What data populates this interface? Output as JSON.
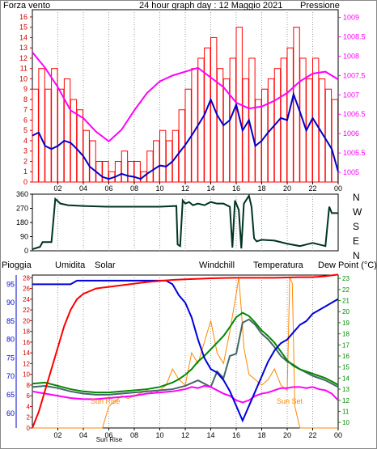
{
  "header": {
    "left_label": "Forza vento",
    "title": "24 hour graph day : 12 Maggio 2021",
    "right_label": "Pressione"
  },
  "colors": {
    "wind": "#ff0000",
    "gust": "#0000cc",
    "pressure": "#ff00ff",
    "direction": "#003322",
    "rain": "#ff0000",
    "humidity": "#0000dd",
    "solar": "#ff8800",
    "windchill": "#446666",
    "temperature": "#008800",
    "dewpoint": "#ff00ff",
    "axis_green": "#008800",
    "axis_blue": "#0000cc",
    "axis_red": "#cc0000"
  },
  "x_tick_labels": [
    "02",
    "04",
    "06",
    "08",
    "10",
    "12",
    "14",
    "16",
    "18",
    "20",
    "22",
    "00"
  ],
  "direction_letters": [
    "N",
    "W",
    "S",
    "E",
    "N"
  ],
  "bottom_header": {
    "rain": "Pioggia",
    "humidity": "Umidita",
    "solar": "Solar",
    "windchill": "Windchill",
    "temperature": "Temperatura",
    "dewpoint": "Dew Point (°C)"
  },
  "annotations": {
    "sunrise_axis": "Sun Rise",
    "sunrise": "Sun Rise",
    "sunset": "Sun Set"
  },
  "chart_data": [
    {
      "type": "line",
      "panel": "wind-pressure",
      "x_unit": "hour",
      "x_range": [
        0,
        24
      ],
      "y_left": {
        "label": "Forza vento",
        "ticks": [
          0,
          1,
          2,
          3,
          4,
          5,
          6,
          7,
          8,
          9,
          10,
          11,
          12,
          13,
          14,
          15,
          16
        ],
        "range": [
          0,
          16.7
        ]
      },
      "y_right": {
        "label": "Pressione",
        "ticks": [
          "1005",
          "1005.5",
          "1006",
          "1006.5",
          "1007",
          "1007.5",
          "1008",
          "1008.5",
          "1009"
        ],
        "range": [
          1004.75,
          1009.2
        ]
      },
      "series": [
        {
          "name": "Forza vento",
          "axis": "left",
          "style": "bars",
          "x": [
            0,
            0.5,
            1,
            1.5,
            2,
            2.5,
            3,
            3.5,
            4,
            4.5,
            5,
            5.5,
            6,
            6.5,
            7,
            7.5,
            8,
            8.5,
            9,
            9.5,
            10,
            10.5,
            11,
            11.5,
            12,
            12.5,
            13,
            13.5,
            14,
            14.5,
            15,
            15.5,
            16,
            16.5,
            17,
            17.5,
            18,
            18.5,
            19,
            19.5,
            20,
            20.5,
            21,
            21.5,
            22,
            22.5,
            23,
            23.5,
            24
          ],
          "values": [
            9,
            11,
            9,
            11,
            9,
            10,
            8,
            7,
            5,
            4,
            2,
            2,
            1,
            2,
            3,
            2,
            2,
            1,
            3,
            4,
            5,
            4,
            5,
            7,
            9,
            11,
            12,
            13,
            14,
            11,
            10,
            12,
            15,
            10,
            12,
            8,
            9,
            10,
            11,
            12,
            13,
            15,
            12,
            10,
            12,
            10,
            9,
            8,
            5
          ]
        },
        {
          "name": "Raffica",
          "axis": "left",
          "x": [
            0,
            0.5,
            1,
            1.5,
            2,
            2.5,
            3,
            3.5,
            4,
            4.5,
            5,
            5.5,
            6,
            6.5,
            7,
            7.5,
            8,
            8.5,
            9,
            9.5,
            10,
            10.5,
            11,
            11.5,
            12,
            12.5,
            13,
            13.5,
            14,
            14.5,
            15,
            15.5,
            16,
            16.5,
            17,
            17.5,
            18,
            18.5,
            19,
            19.5,
            20,
            20.5,
            21,
            21.5,
            22,
            22.5,
            23,
            23.5,
            24
          ],
          "values": [
            4.5,
            4.8,
            3.5,
            3.2,
            3.5,
            4,
            3.8,
            3.2,
            2.5,
            1.5,
            1,
            0.5,
            0.3,
            0.5,
            0.8,
            0.6,
            0.5,
            0.3,
            0.8,
            1.2,
            1.6,
            1.5,
            2,
            2.8,
            3.6,
            4.5,
            5.5,
            6.5,
            8,
            6.5,
            5.5,
            6,
            7.5,
            5,
            6,
            3.5,
            4,
            4.8,
            5.5,
            6.2,
            6,
            8.5,
            6.8,
            5,
            6.2,
            5.2,
            4.2,
            3.2,
            1
          ]
        },
        {
          "name": "Pressione",
          "axis": "right",
          "x": [
            0,
            1,
            2,
            3,
            4,
            5,
            6,
            7,
            8,
            9,
            10,
            11,
            12,
            13,
            14,
            15,
            16,
            17,
            18,
            19,
            20,
            21,
            22,
            23,
            24
          ],
          "values": [
            1008.1,
            1007.7,
            1007.2,
            1006.6,
            1006.4,
            1006.05,
            1005.8,
            1006.1,
            1006.6,
            1007.05,
            1007.35,
            1007.5,
            1007.6,
            1007.7,
            1007.45,
            1007.2,
            1006.8,
            1006.65,
            1006.7,
            1006.85,
            1007.05,
            1007.35,
            1007.55,
            1007.6,
            1007.4
          ]
        }
      ]
    },
    {
      "type": "line",
      "panel": "wind-direction",
      "x_unit": "hour",
      "x_range": [
        0,
        24
      ],
      "y": {
        "ticks": [
          0,
          90,
          180,
          270,
          360
        ],
        "range": [
          0,
          360
        ]
      },
      "series": [
        {
          "name": "Direzione vento",
          "x": [
            0,
            0.6,
            0.8,
            1.5,
            1.8,
            2.2,
            2.8,
            4,
            6,
            8,
            10,
            11.3,
            11.4,
            11.6,
            11.8,
            12,
            12.3,
            12.6,
            13,
            13.5,
            14,
            14.5,
            15,
            15.5,
            15.7,
            15.9,
            16,
            16.2,
            16.4,
            16.6,
            17,
            17.2,
            17.4,
            17.6,
            18,
            19,
            20,
            21,
            22,
            23,
            23.3,
            23.5,
            24
          ],
          "values": [
            10,
            25,
            55,
            55,
            330,
            300,
            290,
            285,
            280,
            280,
            280,
            285,
            40,
            30,
            320,
            300,
            310,
            290,
            300,
            290,
            310,
            300,
            300,
            280,
            20,
            320,
            300,
            260,
            15,
            300,
            350,
            280,
            80,
            60,
            70,
            65,
            45,
            30,
            50,
            30,
            280,
            240,
            240
          ]
        }
      ]
    },
    {
      "type": "line",
      "panel": "rain-humidity-solar-temperature",
      "x_unit": "hour",
      "x_range": [
        0,
        24
      ],
      "y_rain": {
        "label": "Pioggia",
        "ticks": [
          0,
          2,
          4,
          6,
          8,
          10,
          12,
          14,
          16,
          18,
          20,
          22,
          24,
          26,
          28
        ],
        "range": [
          0,
          28.5
        ]
      },
      "y_humidity": {
        "label": "Umidita",
        "ticks": [
          60,
          65,
          70,
          75,
          80,
          85,
          90,
          95
        ],
        "range": [
          56,
          97.5
        ]
      },
      "y_temperature": {
        "label": "Dew Point (°C)",
        "ticks": [
          10,
          11,
          12,
          13,
          14,
          15,
          16,
          17,
          18,
          19,
          20,
          21,
          22,
          23
        ],
        "range": [
          9.5,
          23.3
        ]
      },
      "series": [
        {
          "name": "Pioggia",
          "axis": "rain",
          "x": [
            0,
            0.5,
            1,
            1.5,
            2,
            2.5,
            3,
            3.5,
            4,
            5,
            6,
            7,
            8,
            9,
            10,
            11,
            12,
            13,
            14,
            15,
            16,
            17,
            18,
            19,
            20,
            21,
            22,
            23,
            24
          ],
          "values": [
            0,
            3,
            7,
            11,
            15,
            19,
            22,
            24,
            25,
            26,
            26.3,
            26.6,
            26.9,
            27.2,
            27.4,
            27.6,
            27.7,
            27.8,
            27.9,
            27.95,
            28,
            28,
            28,
            28,
            28.05,
            28.1,
            28.1,
            28.3,
            28.6
          ]
        },
        {
          "name": "Umidita",
          "axis": "humidity",
          "x": [
            0,
            3,
            3.5,
            4,
            6,
            8,
            10,
            10.5,
            11,
            11.5,
            12,
            12.5,
            13,
            13.5,
            14,
            14.5,
            15,
            15.5,
            16,
            16.5,
            17,
            17.5,
            18,
            18.5,
            19,
            19.5,
            20,
            20.5,
            21,
            21.5,
            22,
            22.5,
            23,
            23.5,
            24
          ],
          "values": [
            95,
            95,
            96,
            96,
            96,
            96,
            96,
            96,
            95,
            92,
            90,
            86,
            80,
            75,
            72,
            71,
            69,
            66,
            62,
            58,
            62,
            66,
            70,
            74,
            77,
            79,
            80,
            82,
            84,
            85,
            87,
            88,
            89,
            90,
            91
          ]
        },
        {
          "name": "Solar",
          "axis": "rain",
          "style": "spikes",
          "x": [
            0,
            5.5,
            6,
            6.5,
            7,
            7.5,
            8,
            8.5,
            9,
            9.5,
            10,
            10.5,
            11,
            11.5,
            12,
            12.5,
            13,
            13.5,
            14,
            14.5,
            15,
            15.5,
            16,
            16.2,
            16.4,
            16.6,
            17,
            17.5,
            18,
            18.5,
            19,
            19.5,
            20,
            20.2,
            20.4,
            20.6,
            21,
            24
          ],
          "values": [
            0,
            0,
            4,
            5,
            6,
            5.5,
            6,
            6.5,
            7,
            6.5,
            7,
            8,
            11,
            9,
            8,
            14,
            12,
            16,
            20,
            14,
            12,
            18,
            25,
            28,
            22,
            15,
            10,
            9,
            8,
            9,
            11,
            8,
            7,
            28,
            27,
            4,
            0,
            0
          ]
        },
        {
          "name": "Windchill",
          "axis": "temperature",
          "x": [
            0,
            1,
            2,
            3,
            4,
            5,
            6,
            7,
            8,
            9,
            10,
            11,
            12,
            13,
            13.5,
            14,
            14.5,
            15,
            15.5,
            16,
            16.5,
            17,
            17.5,
            18,
            18.5,
            19,
            19.5,
            20,
            20.5,
            21,
            21.5,
            22,
            22.5,
            23,
            23.5,
            24
          ],
          "values": [
            13.2,
            13.3,
            13.1,
            12.8,
            12.6,
            12.5,
            12.5,
            12.6,
            12.7,
            12.8,
            12.9,
            13,
            13.3,
            13.8,
            13.5,
            13.2,
            14.6,
            14,
            16,
            16.2,
            19,
            19.3,
            18.8,
            18,
            17.5,
            16.8,
            16,
            15.5,
            15.2,
            14.8,
            14.5,
            14.2,
            14,
            13.8,
            13.5,
            13.2
          ]
        },
        {
          "name": "Temperatura",
          "axis": "temperature",
          "x": [
            0,
            1,
            2,
            3,
            4,
            5,
            6,
            7,
            8,
            9,
            10,
            11,
            11.5,
            12,
            12.5,
            13,
            13.5,
            14,
            14.5,
            15,
            15.5,
            16,
            16.5,
            17,
            17.5,
            18,
            18.5,
            19,
            19.5,
            20,
            20.5,
            21,
            21.5,
            22,
            22.5,
            23,
            23.5,
            24
          ],
          "values": [
            13.5,
            13.6,
            13.3,
            13,
            12.8,
            12.7,
            12.7,
            12.8,
            12.9,
            13,
            13.2,
            13.6,
            13.9,
            14.3,
            14.8,
            15.5,
            16,
            16.6,
            17.2,
            17.8,
            18.6,
            19.5,
            19.9,
            19.6,
            19,
            18.3,
            17.8,
            17.2,
            16.4,
            15.6,
            15.1,
            14.8,
            14.6,
            14.4,
            14.2,
            14,
            13.7,
            13.4
          ]
        },
        {
          "name": "Dew Point (°C)",
          "axis": "temperature",
          "x": [
            0,
            1,
            2,
            3,
            4,
            5,
            6,
            7,
            8,
            9,
            10,
            11,
            11.5,
            12,
            12.5,
            13,
            13.5,
            14,
            14.5,
            15,
            15.5,
            16,
            16.5,
            17,
            17.5,
            18,
            18.5,
            19,
            19.5,
            20,
            20.5,
            21,
            21.5,
            22,
            22.5,
            23,
            23.5,
            24
          ],
          "values": [
            12.8,
            12.6,
            12.4,
            12.2,
            12.1,
            12.1,
            12.2,
            12.3,
            12.4,
            12.6,
            12.7,
            12.8,
            12.9,
            13,
            13.2,
            13.1,
            13.3,
            13.2,
            12.9,
            12.6,
            12.4,
            12,
            11.8,
            12,
            12.4,
            12.6,
            12.7,
            12.9,
            13.1,
            13.1,
            13.2,
            13.2,
            13.1,
            13.2,
            13,
            12.9,
            12.6,
            12
          ]
        }
      ]
    }
  ]
}
